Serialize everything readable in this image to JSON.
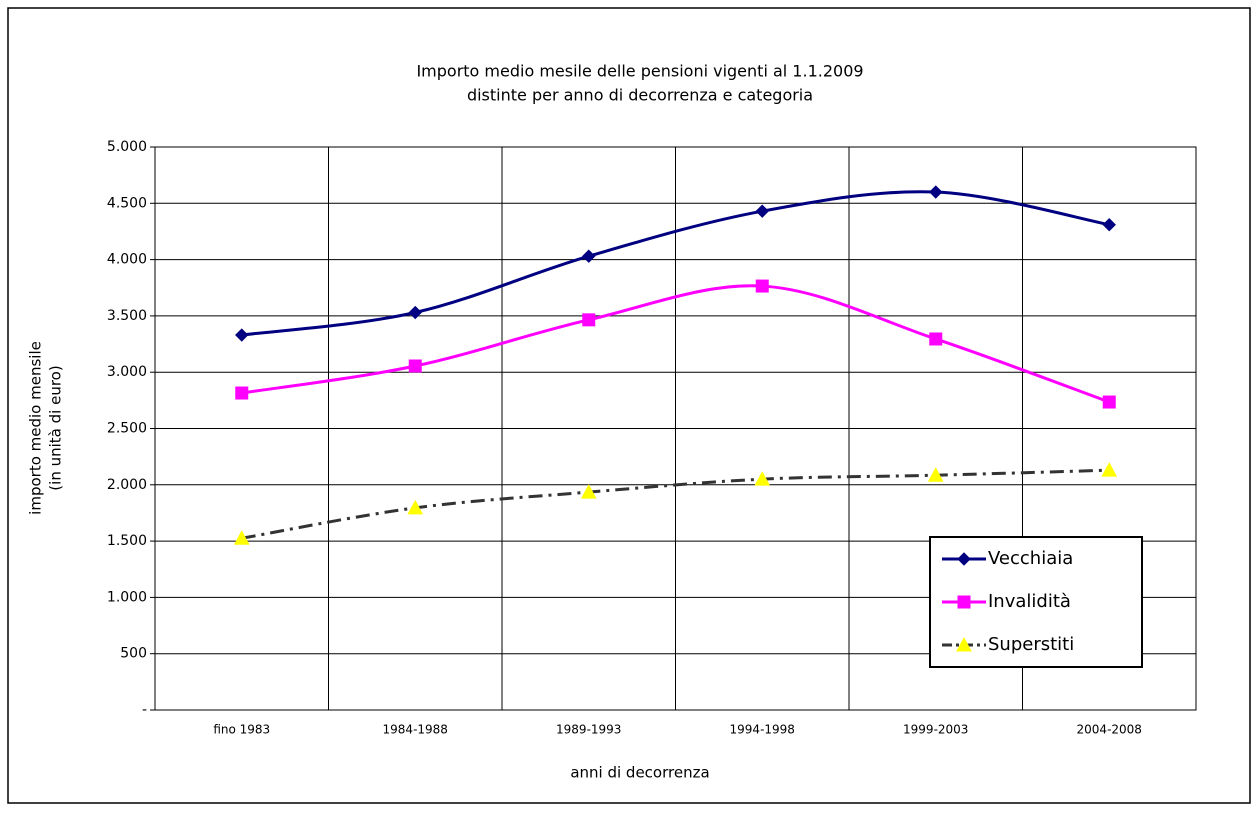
{
  "chart_data": {
    "type": "line",
    "title": "Importo medio mesile delle pensioni vigenti al 1.1.2009",
    "subtitle": "distinte per anno di decorrenza e categoria",
    "ylabel": [
      "importo medio mensile",
      "(in unità di euro)"
    ],
    "xlabel": "anni di decorrenza",
    "categories": [
      "fino 1983",
      "1984-1988",
      "1989-1993",
      "1994-1998",
      "1999-2003",
      "2004-2008"
    ],
    "series": [
      {
        "name": "Vecchiaia",
        "color": "#000080",
        "marker": "diamond",
        "dash": "solid",
        "values": [
          3330,
          3530,
          4030,
          4430,
          4600,
          4310
        ]
      },
      {
        "name": "Invalidità",
        "color": "#ff00ff",
        "marker": "square",
        "dash": "solid",
        "values": [
          2815,
          3055,
          3465,
          3765,
          3295,
          2735
        ]
      },
      {
        "name": "Superstiti",
        "color": "#333333",
        "marker": "triangle",
        "marker_color": "#ffff00",
        "dash": "dashdot",
        "values": [
          1525,
          1795,
          1935,
          2050,
          2085,
          2130
        ]
      }
    ],
    "ylim": [
      0,
      5000
    ],
    "yticks": [
      {
        "value": 0,
        "label": "-"
      },
      500,
      {
        "value": 1000,
        "label": "1.000"
      },
      {
        "value": 1500,
        "label": "1.500"
      },
      {
        "value": 2000,
        "label": "2.000"
      },
      {
        "value": 2500,
        "label": "2.500"
      },
      {
        "value": 3000,
        "label": "3.000"
      },
      {
        "value": 3500,
        "label": "3.500"
      },
      {
        "value": 4000,
        "label": "4.000"
      },
      {
        "value": 4500,
        "label": "4.500"
      },
      {
        "value": 5000,
        "label": "5.000"
      }
    ],
    "grid": true,
    "smooth": true,
    "legend": "lower right"
  }
}
